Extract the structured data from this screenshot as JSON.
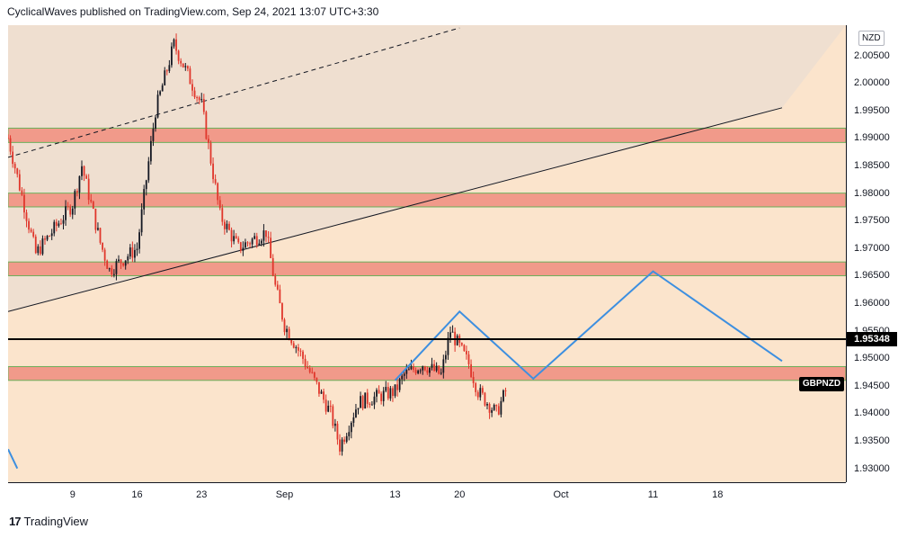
{
  "header": {
    "published": "CyclicalWaves published on TradingView.com, Sep 24, 2021 13:07 UTC+3:30"
  },
  "footer": {
    "logo": "17",
    "brand": "TradingView"
  },
  "currency": "NZD",
  "symbol": "GBPNZD",
  "current_price_label": "1.95348",
  "colors": {
    "background_upper": "#efdfd0",
    "background_lower": "#fbe4cc",
    "zone_fill": "#f19a8a",
    "zone_border": "#6bb05b",
    "candle_up": "#131722",
    "candle_down": "#e0362b",
    "projection": "#3d8fe0"
  },
  "chart_data": {
    "type": "candlestick",
    "ylim": [
      1.9275,
      2.0105
    ],
    "yticks": [
      "2.00500",
      "2.00000",
      "1.99500",
      "1.99000",
      "1.98500",
      "1.98000",
      "1.97500",
      "1.97000",
      "1.96500",
      "1.96000",
      "1.95500",
      "1.95000",
      "1.94500",
      "1.94000",
      "1.93500",
      "1.93000"
    ],
    "xticks": [
      "9",
      "16",
      "23",
      "Sep",
      "13",
      "20",
      "Oct",
      "11",
      "18"
    ],
    "zones": [
      {
        "low": 1.9892,
        "high": 1.9918
      },
      {
        "low": 1.9775,
        "high": 1.98
      },
      {
        "low": 1.965,
        "high": 1.9675
      },
      {
        "low": 1.946,
        "high": 1.9485
      }
    ],
    "current_price": 1.95348,
    "price_path": [
      [
        "Aug 2",
        1.99
      ],
      [
        "Aug 4",
        1.976
      ],
      [
        "Aug 5",
        1.969
      ],
      [
        "Aug 9",
        1.978
      ],
      [
        "Aug 10",
        1.985
      ],
      [
        "Aug 12",
        1.971
      ],
      [
        "Aug 13",
        1.966
      ],
      [
        "Aug 16",
        1.97
      ],
      [
        "Aug 18",
        1.995
      ],
      [
        "Aug 20",
        2.007
      ],
      [
        "Aug 23",
        1.996
      ],
      [
        "Aug 25",
        1.976
      ],
      [
        "Aug 27",
        1.97
      ],
      [
        "Aug 30",
        1.973
      ],
      [
        "Aug 31",
        1.963
      ],
      [
        "Sep 1",
        1.956
      ],
      [
        "Sep 3",
        1.95
      ],
      [
        "Sep 6",
        1.94
      ],
      [
        "Sep 7",
        1.934
      ],
      [
        "Sep 9",
        1.942
      ],
      [
        "Sep 13",
        1.944
      ],
      [
        "Sep 14",
        1.947
      ],
      [
        "Sep 16",
        1.949
      ],
      [
        "Sep 18",
        1.947
      ],
      [
        "Sep 19",
        1.955
      ],
      [
        "Sep 21",
        1.949
      ],
      [
        "Sep 22",
        1.944
      ],
      [
        "Sep 24",
        1.94
      ],
      [
        "Sep 25",
        1.944
      ]
    ],
    "trendlines": [
      {
        "style": "dashed",
        "from": [
          "Aug 2",
          1.9865
        ],
        "to": [
          "Sep 20",
          2.01
        ]
      },
      {
        "style": "solid",
        "from": [
          "Aug 2",
          1.9585
        ],
        "to": [
          "Oct 25",
          1.9955
        ]
      }
    ],
    "projection": [
      [
        "Sep 13",
        1.946
      ],
      [
        "Sep 20",
        1.9585
      ],
      [
        "Sep 28",
        1.9463
      ],
      [
        "Oct 11",
        1.9658
      ],
      [
        "Oct 25",
        1.9495
      ]
    ],
    "projection_tail": [
      [
        "Aug 2",
        1.9335
      ],
      [
        "Aug 3",
        1.93
      ]
    ]
  }
}
